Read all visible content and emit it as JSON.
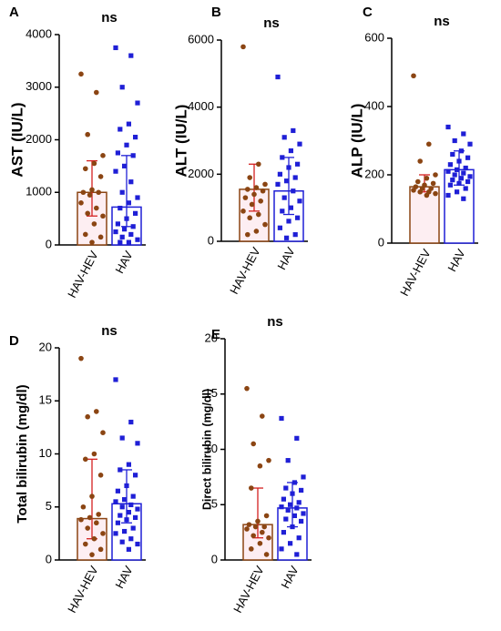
{
  "chart_data": [
    {
      "type": "bar",
      "label": "A",
      "title": "ns",
      "ylabel": "AST (IU/L)",
      "categories": [
        "HAV-HEV",
        "HAV"
      ],
      "values": [
        1000,
        720
      ],
      "error_low": [
        550,
        350
      ],
      "error_high": [
        1600,
        1700
      ],
      "points": [
        [
          3250,
          2900,
          2100,
          1700,
          1550,
          1450,
          1300,
          1050,
          1000,
          1000,
          950,
          800,
          700,
          600,
          550,
          400,
          200,
          150,
          50
        ],
        [
          3750,
          3600,
          3000,
          2700,
          2300,
          2200,
          2050,
          1900,
          1750,
          1700,
          1500,
          1400,
          1200,
          1000,
          900,
          800,
          700,
          600,
          500,
          400,
          350,
          300,
          250,
          200,
          150,
          100,
          50,
          50
        ]
      ],
      "colors": [
        "#8b4513",
        "#1f1fd6"
      ],
      "ylim": [
        0,
        4000
      ],
      "yticks": [
        0,
        1000,
        2000,
        3000,
        4000
      ]
    },
    {
      "type": "bar",
      "label": "B",
      "title": "ns",
      "ylabel": "ALT (IU/L)",
      "categories": [
        "HAV-HEV",
        "HAV"
      ],
      "values": [
        1550,
        1500
      ],
      "error_low": [
        900,
        800
      ],
      "error_high": [
        2300,
        2500
      ],
      "points": [
        [
          5800,
          2300,
          1900,
          1700,
          1600,
          1550,
          1500,
          1400,
          1300,
          1200,
          1100,
          900,
          800,
          700,
          500,
          300,
          200
        ],
        [
          4900,
          3300,
          3100,
          2900,
          2700,
          2500,
          2300,
          2200,
          2000,
          1900,
          1800,
          1700,
          1500,
          1300,
          1200,
          1000,
          900,
          700,
          600,
          400,
          200,
          100
        ]
      ],
      "colors": [
        "#8b4513",
        "#1f1fd6"
      ],
      "ylim": [
        0,
        6000
      ],
      "yticks": [
        0,
        2000,
        4000,
        6000
      ]
    },
    {
      "type": "bar",
      "label": "C",
      "title": "ns",
      "ylabel": "ALP (IU/L)",
      "categories": [
        "HAV-HEV",
        "HAV"
      ],
      "values": [
        165,
        215
      ],
      "error_low": [
        150,
        170
      ],
      "error_high": [
        200,
        270
      ],
      "points": [
        [
          490,
          290,
          240,
          200,
          190,
          180,
          175,
          170,
          165,
          160,
          160,
          155,
          150,
          150,
          145,
          140
        ],
        [
          340,
          320,
          300,
          290,
          270,
          260,
          250,
          240,
          230,
          220,
          215,
          210,
          205,
          200,
          195,
          190,
          185,
          180,
          175,
          170,
          160,
          150,
          140,
          130
        ]
      ],
      "colors": [
        "#8b4513",
        "#1f1fd6"
      ],
      "ylim": [
        0,
        600
      ],
      "yticks": [
        0,
        200,
        400,
        600
      ]
    },
    {
      "type": "bar",
      "label": "D",
      "title": "ns",
      "ylabel": "Total bilirubin (mg/dl)",
      "categories": [
        "HAV-HEV",
        "HAV"
      ],
      "values": [
        3.9,
        5.3
      ],
      "error_low": [
        2,
        3.5
      ],
      "error_high": [
        9.5,
        8.5
      ],
      "points": [
        [
          19,
          14,
          13.5,
          12,
          10,
          9.5,
          8,
          6,
          5,
          4.3,
          4,
          3.8,
          3.5,
          3,
          2.5,
          2,
          1.5,
          1,
          0.5
        ],
        [
          17,
          13,
          11.5,
          11,
          9,
          8.5,
          8,
          7,
          6.5,
          6,
          5.7,
          5.5,
          5.2,
          5,
          4.8,
          4.5,
          4.2,
          4,
          3.8,
          3.5,
          3,
          2.7,
          2.5,
          2,
          1.7,
          1.5,
          1
        ]
      ],
      "colors": [
        "#8b4513",
        "#1f1fd6"
      ],
      "ylim": [
        0,
        20
      ],
      "yticks": [
        0,
        5,
        10,
        15,
        20
      ]
    },
    {
      "type": "bar",
      "label": "E",
      "title": "ns",
      "ylabel": "Direct bilirubin (mg/dl)",
      "categories": [
        "HAV-HEV",
        "HAV"
      ],
      "values": [
        3.2,
        4.7
      ],
      "error_low": [
        2,
        3
      ],
      "error_high": [
        6.5,
        7
      ],
      "points": [
        [
          15.5,
          13,
          10.5,
          9,
          8.5,
          6.5,
          4,
          3.5,
          3.2,
          3,
          3,
          2.8,
          2.5,
          2.2,
          2,
          1.5,
          1,
          0.5
        ],
        [
          12.8,
          11,
          9,
          7.5,
          7,
          6.5,
          6.3,
          6,
          5.5,
          5.2,
          5,
          4.8,
          4.7,
          4.5,
          4.2,
          4,
          3.7,
          3.5,
          3,
          2.5,
          2,
          1.5,
          1,
          0.5
        ]
      ],
      "colors": [
        "#8b4513",
        "#1f1fd6"
      ],
      "ylim": [
        0,
        20
      ],
      "yticks": [
        0,
        5,
        10,
        15,
        20
      ]
    }
  ]
}
